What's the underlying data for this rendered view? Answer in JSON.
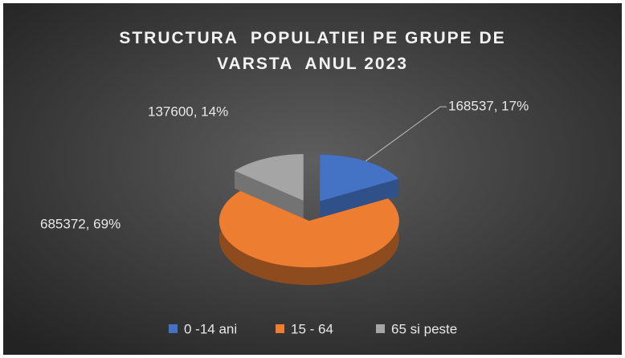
{
  "chart_data": {
    "type": "pie3d",
    "title": "STRUCTURA  POPULATIEI PE GRUPE DE VARSTA  ANUL 2023",
    "categories": [
      "0 -14 ani",
      "15 - 64",
      "65 si peste"
    ],
    "values": [
      168537,
      685372,
      137600
    ],
    "value_labels": [
      "168537, 17%",
      "685372, 69%",
      "137600, 14%"
    ],
    "colors": [
      "#4472c4",
      "#ed7d31",
      "#a5a5a5"
    ],
    "legend": "bottom"
  }
}
